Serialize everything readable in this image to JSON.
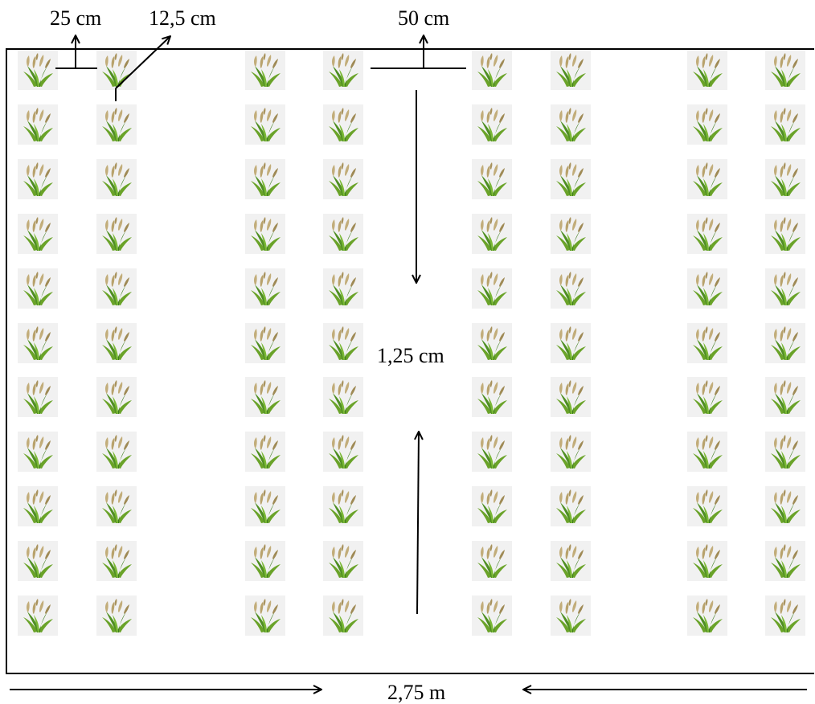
{
  "labels": {
    "spacing_25": "25 cm",
    "spacing_12_5": "12,5 cm",
    "spacing_50": "50 cm",
    "plot_length": "1,25 cm",
    "plot_width": "2,75 m"
  },
  "plot": {
    "columns": 8,
    "rows": 11,
    "plant_icon": "millet-plant-icon"
  },
  "colors": {
    "leaf": "#6aa329",
    "leaf_dark": "#3e7d1e",
    "grain": "#c2ad7a",
    "grain_dark": "#9f8a55",
    "tile_bg": "#f1f1f1"
  }
}
